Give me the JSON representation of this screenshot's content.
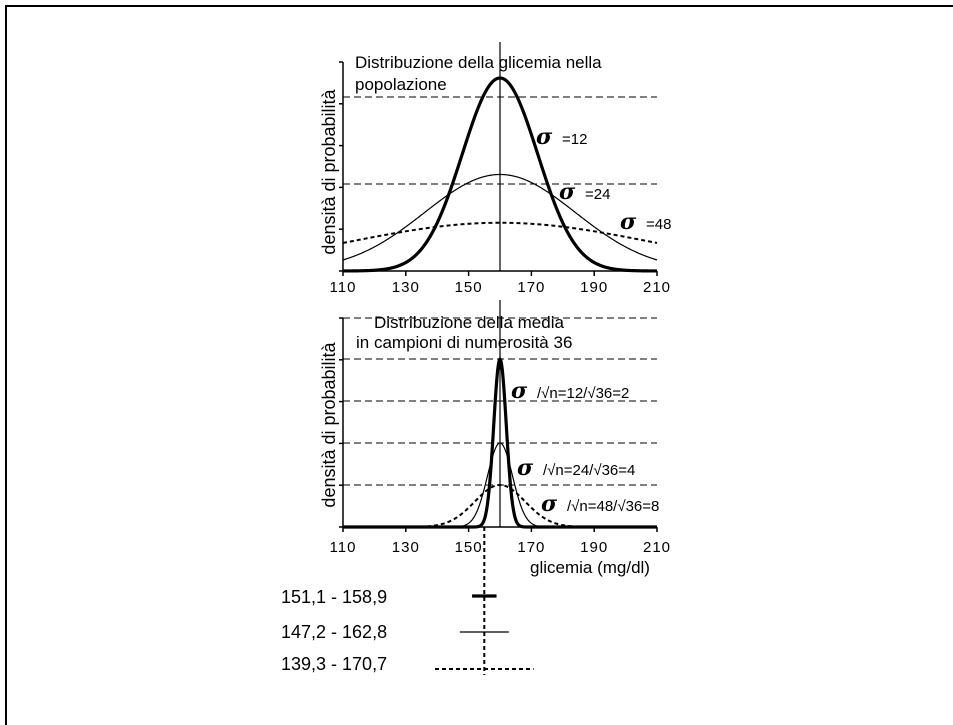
{
  "chart_data": [
    {
      "type": "line",
      "title": "Distribuzione della glicemia nella popolazione",
      "title_lines": [
        "Distribuzione della glicemia nella",
        "popolazione"
      ],
      "ylabel": "densità di probabilità",
      "xlabel": "",
      "x_ticks": [
        "110",
        "130",
        "150",
        "170",
        "190",
        "210"
      ],
      "xlim": [
        110,
        210
      ],
      "mean": 160,
      "grid": "horizontal dashed",
      "series": [
        {
          "sd": 12,
          "style": "thick solid",
          "label": {
            "symbol": "σ",
            "text": "=12"
          }
        },
        {
          "sd": 24,
          "style": "thin solid",
          "label": {
            "symbol": "σ",
            "text": "=24"
          }
        },
        {
          "sd": 48,
          "style": "dotted",
          "label": {
            "symbol": "σ",
            "text": "=48"
          }
        }
      ]
    },
    {
      "type": "line",
      "title": "Distribuzione della media in campioni di numerosità 36",
      "title_lines": [
        "Distribuzione della media",
        "in campioni di numerosità 36"
      ],
      "ylabel": "densità di probabilità",
      "xlabel": "glicemia (mg/dl)",
      "x_ticks": [
        "110",
        "130",
        "150",
        "170",
        "190",
        "210"
      ],
      "xlim": [
        110,
        210
      ],
      "mean": 160,
      "sample_size": 36,
      "grid": "horizontal dashed",
      "series": [
        {
          "sd": 2,
          "style": "thick solid",
          "label": {
            "symbol": "σ",
            "text": "/√n=12/√36=2"
          }
        },
        {
          "sd": 4,
          "style": "thin solid",
          "label": {
            "symbol": "σ",
            "text": "/√n=24/√36=4"
          }
        },
        {
          "sd": 8,
          "style": "dotted",
          "label": {
            "symbol": "σ",
            "text": "/√n=48/√36=8"
          }
        }
      ]
    }
  ],
  "intervals": [
    {
      "label": "151,1 - 158,9",
      "low": 151.1,
      "high": 158.9,
      "style": "thick solid"
    },
    {
      "label": "147,2 - 162,8",
      "low": 147.2,
      "high": 162.8,
      "style": "thin solid"
    },
    {
      "label": "139,3 - 170,7",
      "low": 139.3,
      "high": 170.7,
      "style": "dotted"
    }
  ],
  "styles": {
    "line_color": "#000000",
    "background": "#ffffff"
  }
}
